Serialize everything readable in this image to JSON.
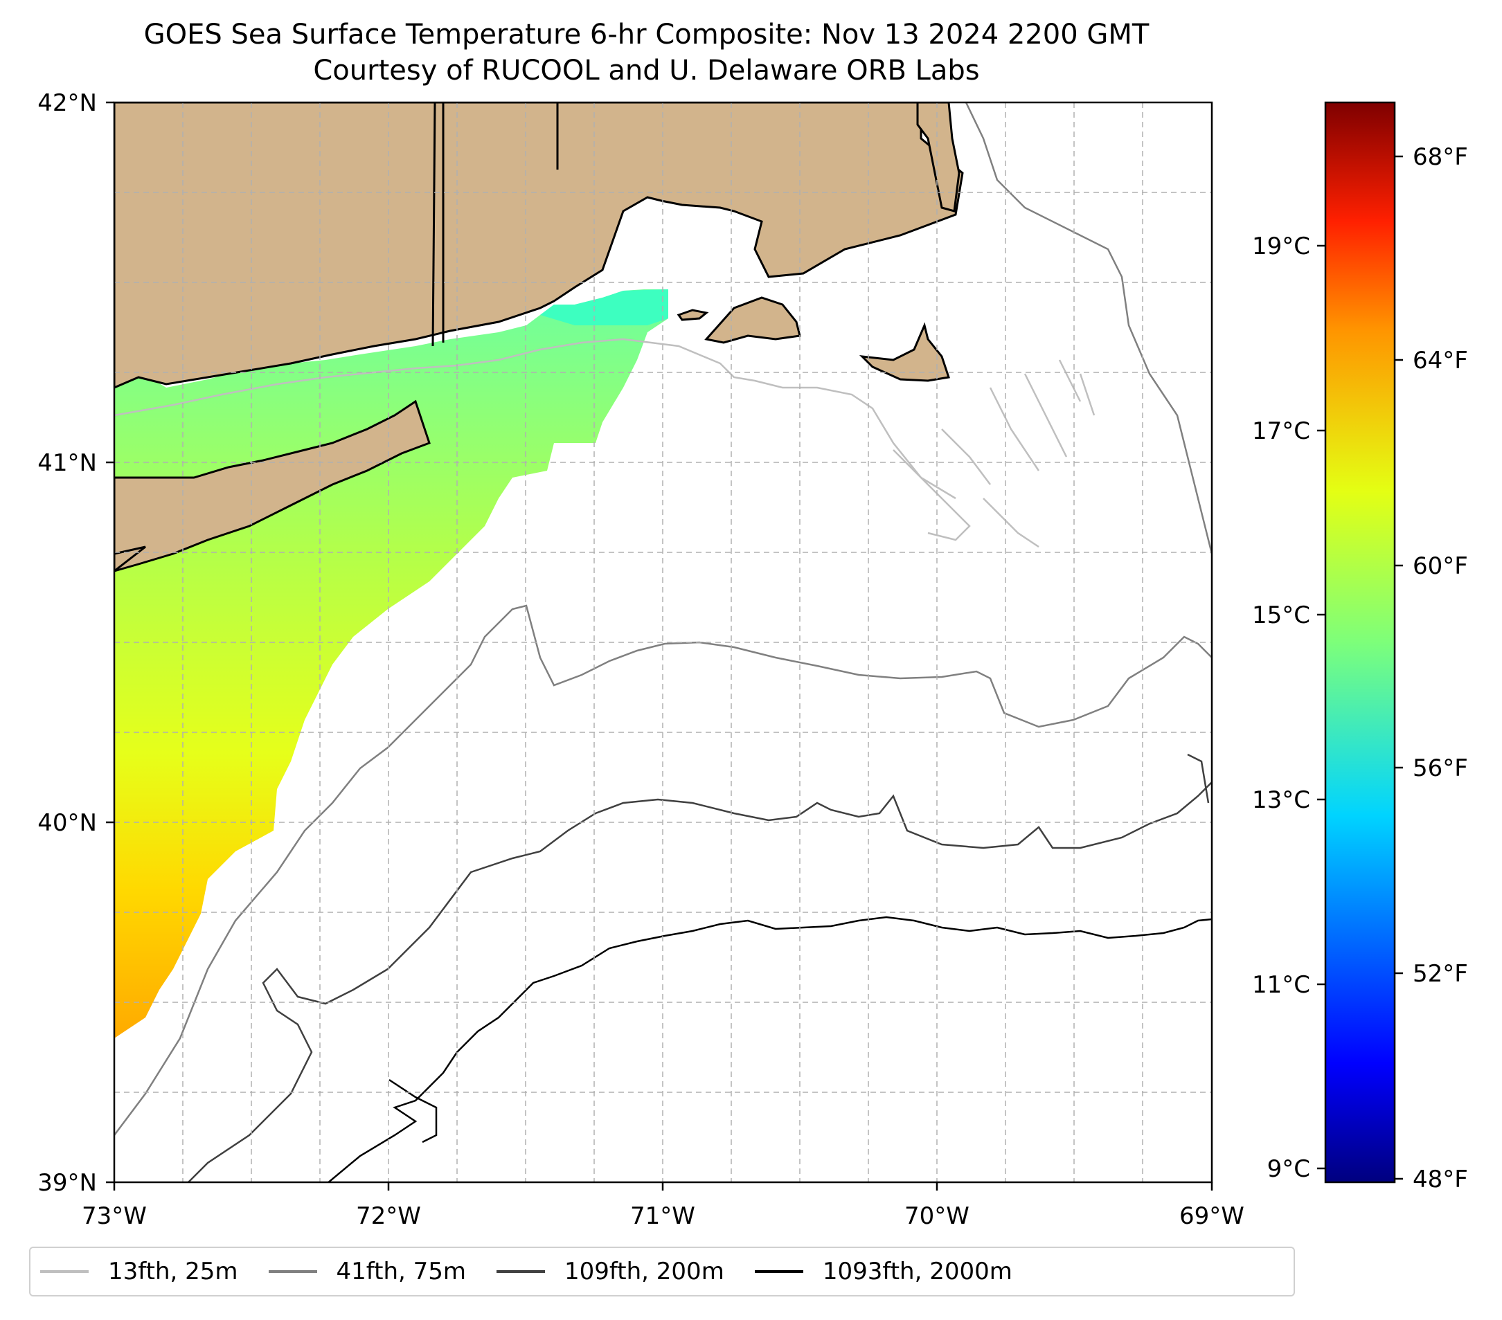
{
  "title": "GOES Sea Surface Temperature 6-hr Composite: Nov 13 2024 2200 GMT",
  "subtitle": "Courtesy of RUCOOL and U. Delaware ORB Labs",
  "map": {
    "lon_range": [
      -73,
      -69
    ],
    "lat_range": [
      39,
      42
    ],
    "x_ticks": [
      "73°W",
      "72°W",
      "71°W",
      "70°W",
      "69°W"
    ],
    "y_ticks": [
      "39°N",
      "40°N",
      "41°N",
      "42°N"
    ],
    "gridlines": true,
    "land_color": "#d2b48c",
    "water_color": "#ffffff"
  },
  "colorbar": {
    "colormap": "jet",
    "range_f": [
      48,
      69
    ],
    "fahrenheit_ticks": [
      "48°F",
      "52°F",
      "56°F",
      "60°F",
      "64°F",
      "68°F"
    ],
    "celsius_ticks": [
      "9°C",
      "11°C",
      "13°C",
      "15°C",
      "17°C",
      "19°C"
    ]
  },
  "legend": [
    {
      "label": "13fth, 25m",
      "color": "#bfbfbf"
    },
    {
      "label": "41fth, 75m",
      "color": "#808080"
    },
    {
      "label": "109fth, 200m",
      "color": "#404040"
    },
    {
      "label": "1093fth, 2000m",
      "color": "#000000"
    }
  ]
}
